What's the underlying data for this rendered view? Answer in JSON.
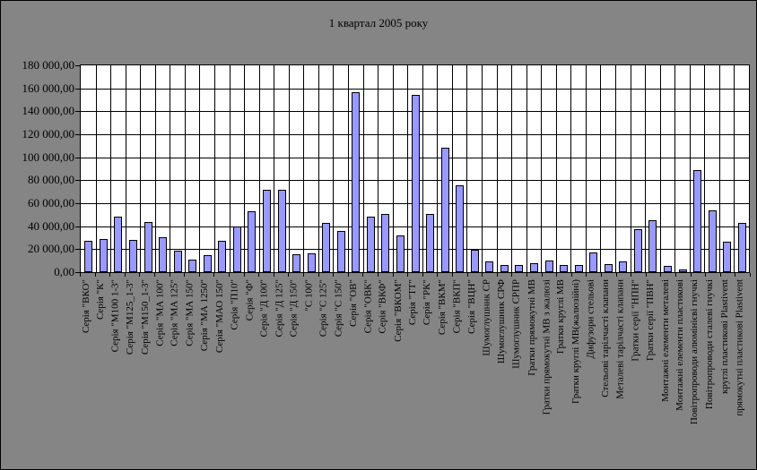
{
  "chart_data": {
    "type": "bar",
    "title": "1 квартал 2005 року",
    "xlabel": "",
    "ylabel": "",
    "ylim": [
      0,
      180000
    ],
    "y_tick_step": 20000,
    "y_tick_labels": [
      "0,00",
      "20 000,00",
      "40 000,00",
      "60 000,00",
      "80 000,00",
      "100 000,00",
      "120 000,00",
      "140 000,00",
      "160 000,00",
      "180 000,00"
    ],
    "grid": "horizontal-and-vertical",
    "legend": "none",
    "categories": [
      "Серія \"ВКО\"",
      "Серія \"К\"",
      "Серія \"М100 1-3\"",
      "Серія \"М125_1-3\"",
      "Серія \"М150_1-3\"",
      "Серія \"МА 100\"",
      "Серія \"МА 125\"",
      "Серія \"МА 150\"",
      "Серія \"МА 1250\"",
      "Серія \"МАО 150\"",
      "Серія \"П10\"",
      "Серія \"Ф\"",
      "Серія \"Д 100\"",
      "Серія \"Д 125\"",
      "Серія \"Д 150\"",
      "\"С 100\"",
      "Серія \"С 125\"",
      "Серія \"С 150\"",
      "Серія \"ОВ\"",
      "Серія \"ОВК\"",
      "Серія \"ВКФ\"",
      "Серія \"ВКОМ\"",
      "Серія \"ТТ\"",
      "Серія \"РК\"",
      "Серія \"ВКМ\"",
      "Серія \"ВКП\"",
      "Серія \"ВЦН\"",
      "Шумоглушник СР",
      "Шумоглушник СРФ",
      "Шумоглушник СРПР",
      "Гратки прямокутні МВ",
      "Гратки прямокутні МВ з жалюзі",
      "Гратки круглі МВ",
      "Гратки круглі МВ(жалюзійні)",
      "Дифузори стельові",
      "Стельові тарілчасті клапани",
      "Металеві тарілчасті клапани",
      "Гратки серії \"НПН\"",
      "Гратки серії \"ПВН\"",
      "Монтажні елементи металеві",
      "Монтажні елементи пластикові",
      "Повітропроводи алюмінієві гнучкі",
      "Повітропроводи сталеві гнучкі",
      "круглі пластикові Plastivent",
      "прямокутні пластикові Plastivent"
    ],
    "values": [
      27000,
      29000,
      48000,
      28000,
      44000,
      30000,
      19000,
      11000,
      15000,
      27000,
      40000,
      53000,
      71500,
      71500,
      15500,
      16000,
      43000,
      36000,
      157000,
      48500,
      51000,
      32000,
      154500,
      50500,
      108000,
      75500,
      19500,
      9000,
      6500,
      6500,
      7500,
      10000,
      6000,
      6000,
      17000,
      7000,
      9000,
      37500,
      45000,
      5500,
      2000,
      89000,
      54000,
      26500,
      42500
    ],
    "colors": {
      "bar_fill": "#9999FF",
      "bar_border": "#000000",
      "plot_bg": "#FFFFFF",
      "grid_line": "#000000",
      "chart_bg": "#858585",
      "text": "#000000"
    }
  }
}
